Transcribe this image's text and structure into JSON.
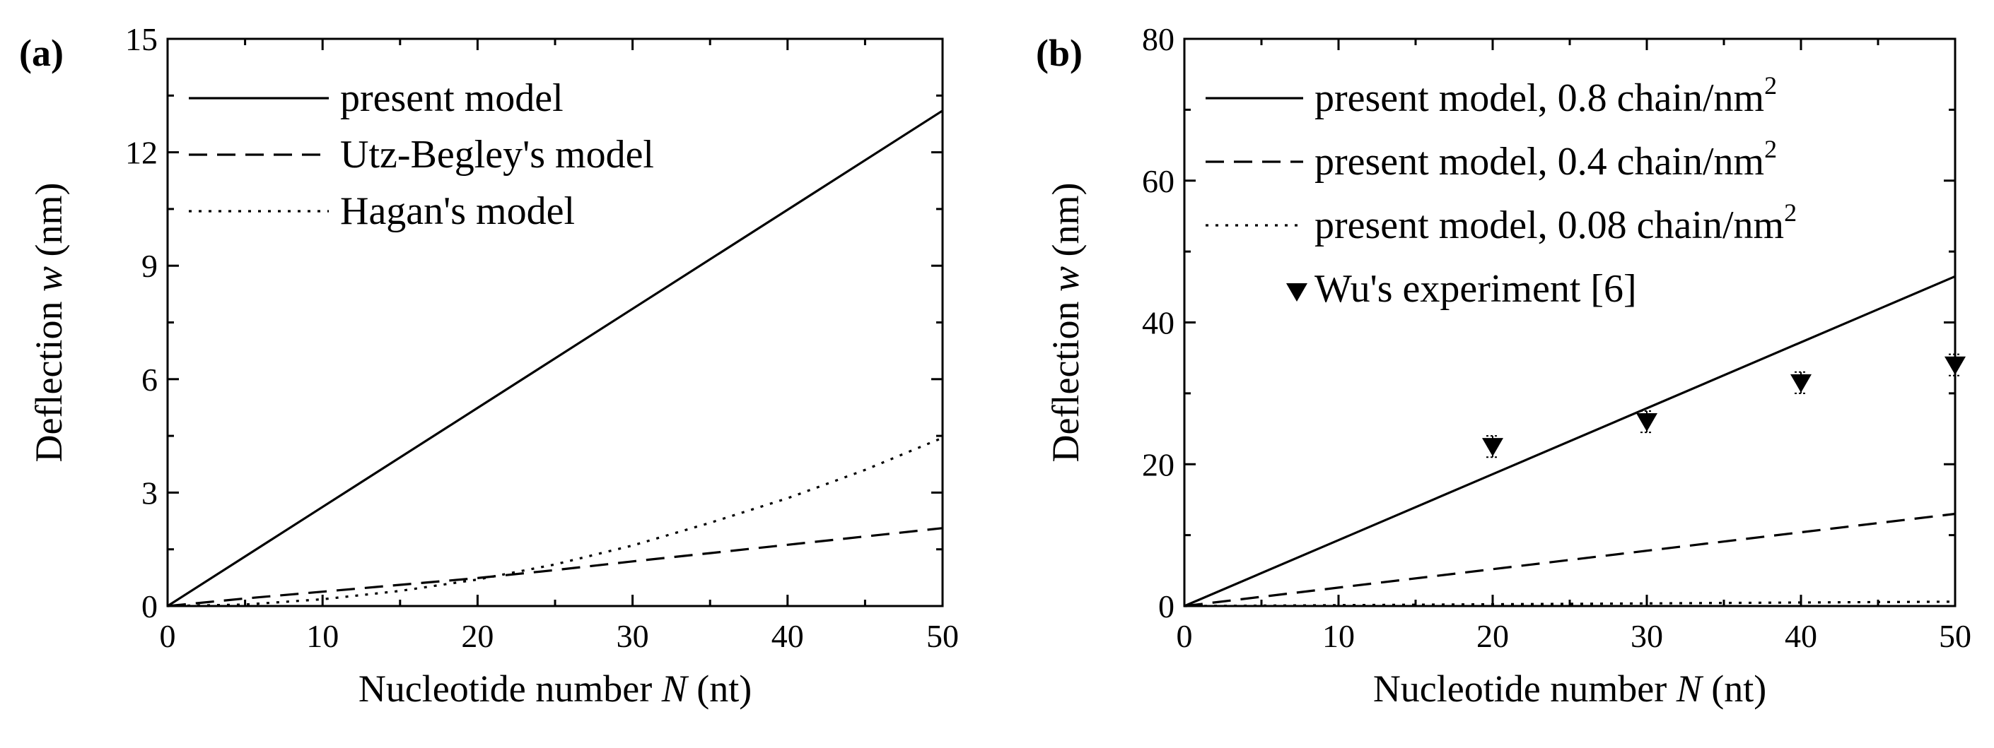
{
  "chart_data": [
    {
      "type": "line",
      "panel_label": "(a)",
      "xlabel": {
        "prefix": "Nucleotide number ",
        "var": "N",
        "suffix": " (nt)"
      },
      "ylabel": {
        "prefix": "Deflection ",
        "var": "w",
        "suffix": " (nm)"
      },
      "xlim": [
        0,
        50
      ],
      "ylim": [
        0,
        15
      ],
      "xticks": [
        0,
        10,
        20,
        30,
        40,
        50
      ],
      "yticks": [
        0,
        3,
        6,
        9,
        12,
        15
      ],
      "legend_position": "top-left",
      "series": [
        {
          "name": "present model",
          "style": "solid",
          "x": [
            0,
            10,
            20,
            30,
            40,
            50
          ],
          "y": [
            0,
            2.62,
            5.24,
            7.86,
            10.48,
            13.1
          ]
        },
        {
          "name": "Utz-Begley's model",
          "style": "dashed",
          "x": [
            0,
            5,
            10,
            15,
            20,
            25,
            30,
            35,
            40,
            45,
            50
          ],
          "y": [
            0,
            0.2,
            0.38,
            0.56,
            0.74,
            0.95,
            1.18,
            1.4,
            1.62,
            1.84,
            2.06
          ]
        },
        {
          "name": "Hagan's model",
          "style": "dotted",
          "x": [
            0,
            5,
            10,
            15,
            20,
            25,
            30,
            35,
            40,
            45,
            50
          ],
          "y": [
            0,
            0.04,
            0.18,
            0.4,
            0.7,
            1.1,
            1.6,
            2.2,
            2.85,
            3.6,
            4.45
          ]
        }
      ]
    },
    {
      "type": "line",
      "panel_label": "(b)",
      "xlabel": {
        "prefix": "Nucleotide number ",
        "var": "N",
        "suffix": " (nt)"
      },
      "ylabel": {
        "prefix": "Deflection ",
        "var": "w",
        "suffix": " (nm)"
      },
      "xlim": [
        0,
        50
      ],
      "ylim": [
        0,
        80
      ],
      "xticks": [
        0,
        10,
        20,
        30,
        40,
        50
      ],
      "yticks": [
        0,
        20,
        40,
        60,
        80
      ],
      "legend_position": "top-left",
      "series": [
        {
          "name": "present model, 0.8 chain/nm",
          "superscript": "2",
          "style": "solid",
          "x": [
            0,
            10,
            20,
            30,
            40,
            50
          ],
          "y": [
            0,
            9.3,
            18.6,
            27.9,
            37.2,
            46.5
          ]
        },
        {
          "name": "present model, 0.4 chain/nm",
          "superscript": "2",
          "style": "dashed",
          "x": [
            0,
            10,
            20,
            30,
            40,
            50
          ],
          "y": [
            0,
            2.6,
            5.2,
            7.8,
            10.4,
            13.0
          ]
        },
        {
          "name": "present model, 0.08 chain/nm",
          "superscript": "2",
          "style": "dotted",
          "x": [
            0,
            10,
            20,
            30,
            40,
            50
          ],
          "y": [
            0,
            0.12,
            0.25,
            0.37,
            0.5,
            0.62
          ]
        },
        {
          "name": "Wu's experiment [6]",
          "style": "markers",
          "marker": "down-triangle",
          "x": [
            20,
            30,
            40,
            50
          ],
          "y": [
            22.5,
            26.0,
            31.5,
            34.0
          ],
          "err": [
            1.5,
            1.5,
            1.5,
            1.5
          ]
        }
      ]
    }
  ]
}
